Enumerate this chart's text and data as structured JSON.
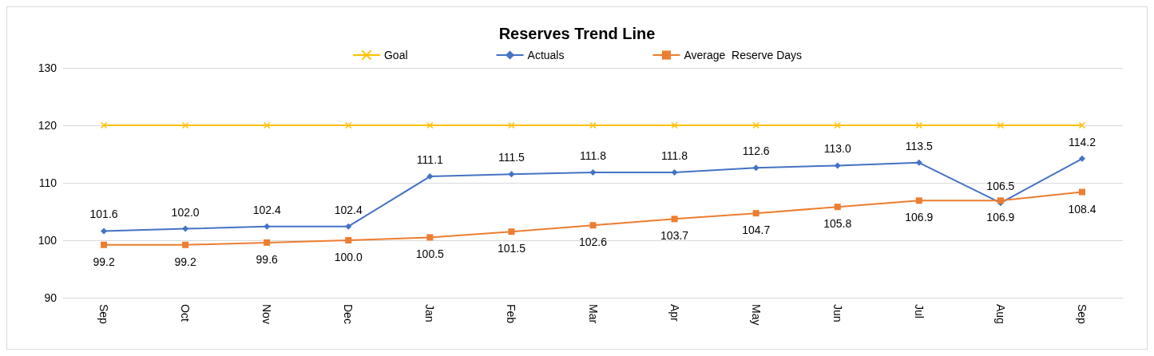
{
  "chart_data": {
    "type": "line",
    "title": "Reserves Trend Line",
    "categories": [
      "Sep",
      "Oct",
      "Nov",
      "Dec",
      "Jan",
      "Feb",
      "Mar",
      "Apr",
      "May",
      "Jun",
      "Jul",
      "Aug",
      "Sep"
    ],
    "series": [
      {
        "name": "Goal",
        "color": "#ffc000",
        "marker": "cross",
        "values": [
          120,
          120,
          120,
          120,
          120,
          120,
          120,
          120,
          120,
          120,
          120,
          120,
          120
        ]
      },
      {
        "name": "Actuals",
        "color": "#4472c4",
        "marker": "diamond",
        "values": [
          101.6,
          102.0,
          102.4,
          102.4,
          111.1,
          111.5,
          111.8,
          111.8,
          112.6,
          113.0,
          113.5,
          106.5,
          114.2
        ],
        "value_labels": [
          "101.6",
          "102.0",
          "102.4",
          "102.4",
          "111.1",
          "111.5",
          "111.8",
          "111.8",
          "112.6",
          "113.0",
          "113.5",
          "106.5",
          "114.2"
        ]
      },
      {
        "name": "Average  Reserve Days",
        "color": "#ed7d31",
        "marker": "square",
        "values": [
          99.2,
          99.2,
          99.6,
          100.0,
          100.5,
          101.5,
          102.6,
          103.7,
          104.7,
          105.8,
          106.9,
          106.9,
          108.4
        ],
        "value_labels": [
          "99.2",
          "99.2",
          "99.6",
          "100.0",
          "100.5",
          "101.5",
          "102.6",
          "103.7",
          "104.7",
          "105.8",
          "106.9",
          "106.9",
          "108.4"
        ]
      }
    ],
    "ylim": [
      90,
      130
    ],
    "yticks": [
      90,
      100,
      110,
      120,
      130
    ],
    "grid": "y",
    "legend": "top",
    "line_style": "solid"
  }
}
